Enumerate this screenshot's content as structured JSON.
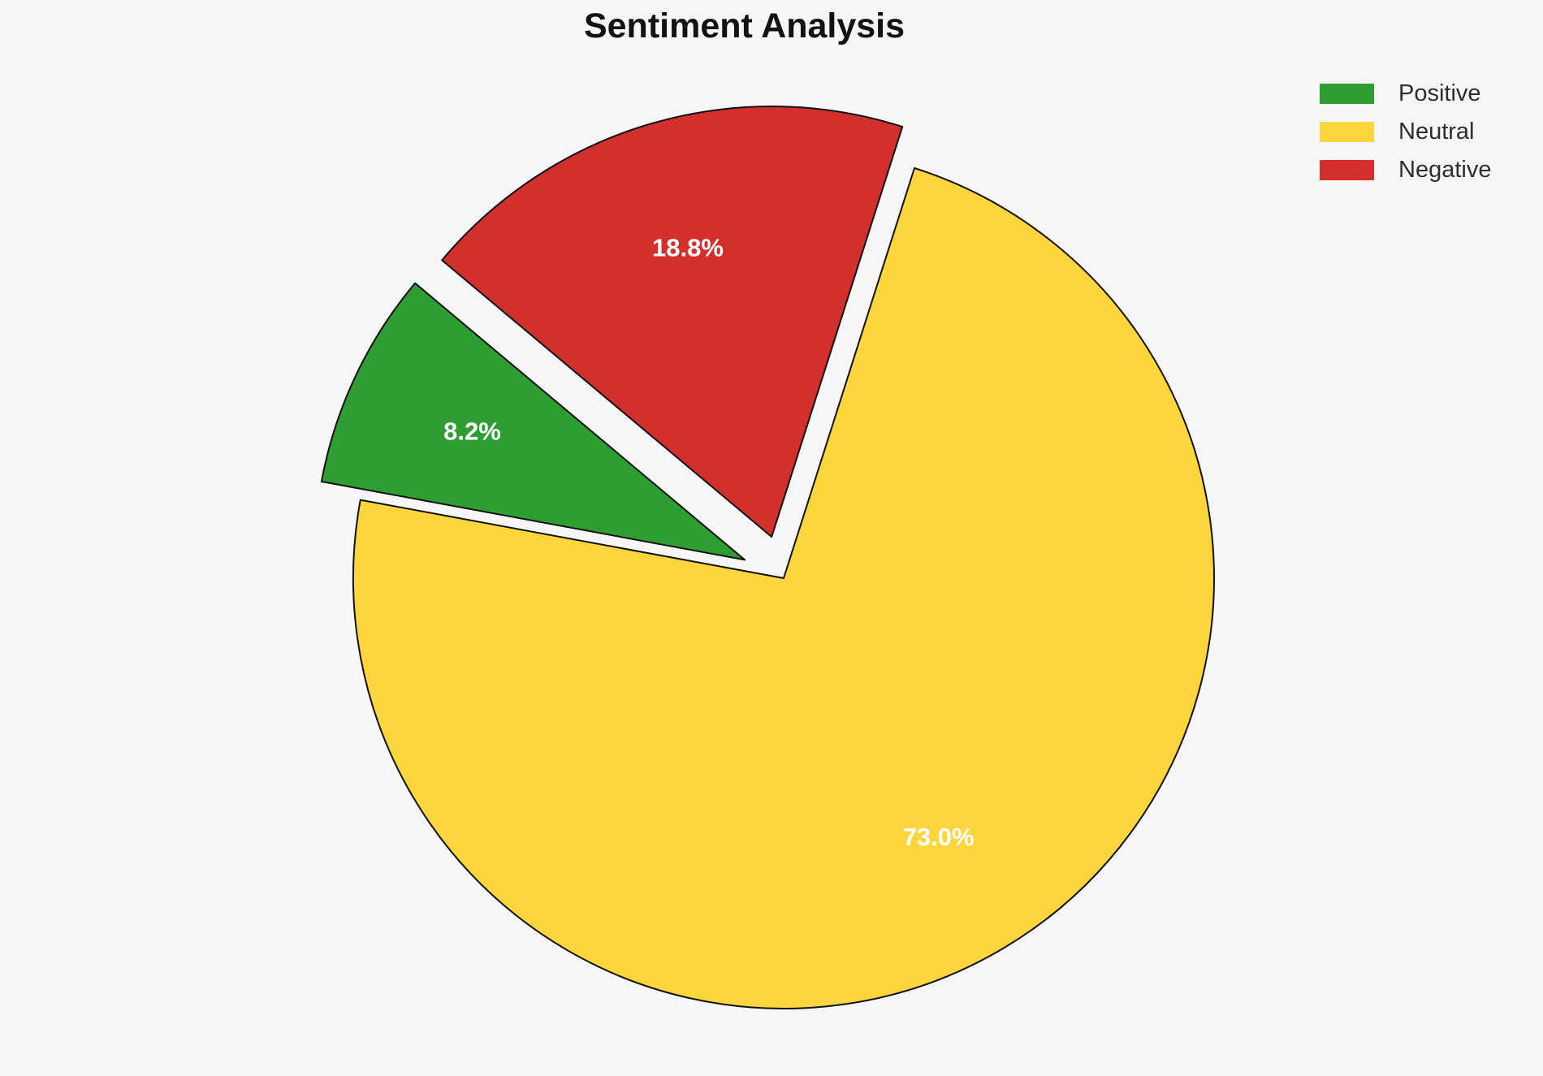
{
  "title": "Sentiment Analysis",
  "colors": {
    "background": "#f6f6f7",
    "title_text": "#121212",
    "legend_text": "#2e2e2e",
    "wedge_stroke": "#111111",
    "pct_label_text": "#ffffff"
  },
  "chart_data": {
    "type": "pie",
    "title": "Sentiment Analysis",
    "slices": [
      {
        "label": "Positive",
        "value": 8.2,
        "pct_label": "8.2%",
        "color": "#2f9e32",
        "explode": 0.1
      },
      {
        "label": "Neutral",
        "value": 73.0,
        "pct_label": "73.0%",
        "color": "#fdd53c",
        "explode": 0.0
      },
      {
        "label": "Negative",
        "value": 18.8,
        "pct_label": "18.8%",
        "color": "#d32f2d",
        "explode": 0.1
      }
    ],
    "start_angle_deg": 140,
    "direction": "counterclockwise",
    "pct_distance": 0.7,
    "stroke_width": 2,
    "legend_position": "upper right",
    "legend_entries": [
      "Positive",
      "Neutral",
      "Negative"
    ]
  }
}
